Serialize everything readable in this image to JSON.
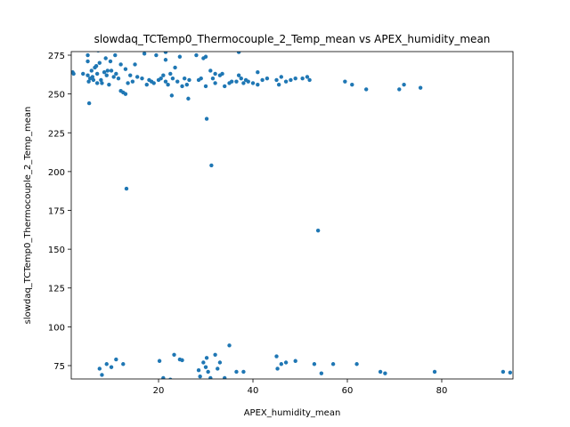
{
  "chart_data": {
    "type": "scatter",
    "title": "slowdaq_TCTemp0_Thermocouple_2_Temp_mean vs APEX_humidity_mean",
    "x_label": "APEX_humidity_mean",
    "y_label": "slowdaq_TCTemp0_Thermocouple_2_Temp_mean",
    "color": "#1f77b4",
    "xlim": [
      1.5,
      95.1
    ],
    "ylim": [
      66.4,
      277.3
    ],
    "xticks": [
      20,
      40,
      60,
      80
    ],
    "yticks": [
      75,
      100,
      125,
      150,
      175,
      200,
      225,
      250,
      275
    ],
    "x": [
      1.8,
      2,
      4,
      5,
      5,
      5,
      5.5,
      5.2,
      5.8,
      6,
      6.2,
      6.5,
      6.8,
      7,
      7,
      7.2,
      7.5,
      7.8,
      8,
      8.5,
      8.8,
      9,
      9.2,
      9.5,
      9.8,
      10,
      10.5,
      10.8,
      11,
      11.5,
      12,
      12,
      12.5,
      13,
      13,
      13.5,
      14,
      14.5,
      15,
      15.5,
      16.5,
      17,
      17.5,
      18,
      18.5,
      19,
      19.5,
      20,
      20.5,
      21,
      21.5,
      21.5,
      21.5,
      22,
      22.5,
      22.8,
      23,
      23.5,
      24,
      24.5,
      25,
      25.5,
      26,
      26.3,
      26.5,
      28,
      28.5,
      29,
      29.5,
      30,
      30,
      31,
      31.5,
      32,
      32,
      33,
      33.5,
      34,
      35,
      35.5,
      36.5,
      37,
      37,
      37.5,
      38,
      38.5,
      39,
      40,
      41,
      41,
      42,
      43,
      45,
      45.5,
      46,
      47,
      48,
      49,
      50.5,
      51.5,
      52,
      59.5,
      61,
      64,
      71,
      72,
      75.5,
      5.3,
      30.2,
      31.2,
      13.2,
      53.8,
      7.5,
      8,
      9,
      10,
      11,
      12.5,
      20.2,
      21,
      22.5,
      23.3,
      24.5,
      25,
      28.5,
      28.8,
      29.5,
      30,
      30.2,
      30.5,
      31,
      32,
      32.5,
      33,
      34,
      35,
      36.5,
      38,
      45,
      45.2,
      46,
      47,
      49,
      53,
      54.5,
      57,
      62,
      67,
      68,
      78.5,
      93,
      94.5
    ],
    "y": [
      264,
      263,
      263,
      275,
      271,
      262,
      260,
      258,
      265,
      261,
      259,
      267,
      268,
      257,
      263,
      278,
      270,
      259,
      257,
      264,
      273,
      262,
      265,
      256,
      271,
      265,
      261,
      275,
      263,
      260,
      252,
      269,
      251,
      266,
      250,
      257,
      262,
      258,
      269,
      261,
      260,
      276,
      256,
      259,
      258,
      257,
      275,
      259,
      260,
      262,
      277,
      272,
      258,
      256,
      263,
      249,
      260,
      267,
      258,
      274,
      255,
      260,
      256,
      247,
      259,
      275,
      259,
      260,
      273,
      274,
      255,
      265,
      260,
      263,
      257,
      262,
      263,
      255,
      257,
      258,
      258,
      262,
      277,
      260,
      257,
      259,
      258,
      257,
      264,
      256,
      259,
      260,
      259,
      256,
      261,
      258,
      259,
      260,
      260,
      261,
      259,
      258,
      256,
      253,
      253,
      256,
      254,
      244,
      234,
      204,
      189,
      162,
      73,
      69,
      76,
      74,
      79,
      76,
      78,
      67,
      66,
      82,
      79,
      78.5,
      72,
      68,
      77,
      74,
      80,
      71,
      67,
      82,
      73,
      77,
      67,
      88,
      71,
      71,
      81,
      73,
      76,
      77,
      78,
      76,
      70,
      76,
      76,
      71,
      70,
      71,
      71,
      70.5
    ]
  }
}
